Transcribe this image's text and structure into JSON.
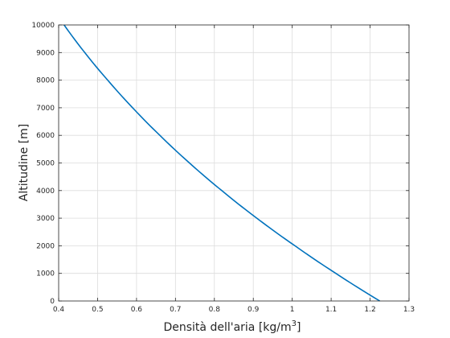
{
  "chart_data": {
    "type": "line",
    "title": "",
    "xlabel": "Densità dell'aria [kg/m",
    "xlabel_superscript": "3",
    "xlabel_suffix": "]",
    "ylabel": "Altitudine [m]",
    "xlim": [
      0.4,
      1.3
    ],
    "ylim": [
      0,
      10000
    ],
    "xticks": [
      "0.4",
      "0.5",
      "0.6",
      "0.7",
      "0.8",
      "0.9",
      "1",
      "1.1",
      "1.2",
      "1.3"
    ],
    "yticks": [
      "0",
      "1000",
      "2000",
      "3000",
      "4000",
      "5000",
      "6000",
      "7000",
      "8000",
      "9000",
      "10000"
    ],
    "grid": true,
    "series": [
      {
        "color": "#0072BD",
        "x": [
          1.225,
          1.112,
          1.007,
          0.909,
          0.819,
          0.736,
          0.66,
          0.59,
          0.526,
          0.467,
          0.414
        ],
        "y": [
          0,
          1000,
          2000,
          3000,
          4000,
          5000,
          6000,
          7000,
          8000,
          9000,
          10000
        ]
      }
    ]
  }
}
